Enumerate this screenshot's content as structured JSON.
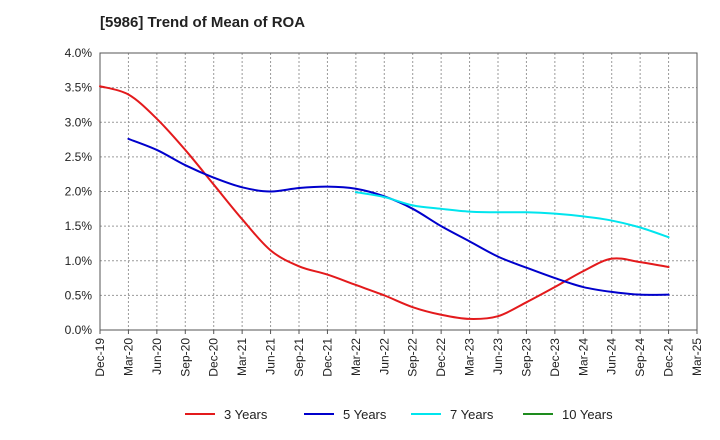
{
  "chart_data": {
    "type": "line",
    "title": "[5986]  Trend of Mean of ROA",
    "xlabel": "",
    "ylabel": "",
    "categories": [
      "Dec-19",
      "Mar-20",
      "Jun-20",
      "Sep-20",
      "Dec-20",
      "Mar-21",
      "Jun-21",
      "Sep-21",
      "Dec-21",
      "Mar-22",
      "Jun-22",
      "Sep-22",
      "Dec-22",
      "Mar-23",
      "Jun-23",
      "Sep-23",
      "Dec-23",
      "Mar-24",
      "Jun-24",
      "Sep-24",
      "Dec-24",
      "Mar-25"
    ],
    "y_ticks": [
      "0.0%",
      "0.5%",
      "1.0%",
      "1.5%",
      "2.0%",
      "2.5%",
      "3.0%",
      "3.5%",
      "4.0%"
    ],
    "ylim": [
      0,
      4.0
    ],
    "grid": true,
    "legend_position": "bottom",
    "series": [
      {
        "name": "3 Years",
        "color": "#e31a1c",
        "values": [
          3.52,
          3.4,
          3.05,
          2.6,
          2.1,
          1.6,
          1.15,
          0.92,
          0.8,
          0.65,
          0.5,
          0.33,
          0.22,
          0.16,
          0.2,
          0.4,
          0.62,
          0.85,
          1.03,
          0.98,
          0.91,
          null
        ]
      },
      {
        "name": "5 Years",
        "color": "#0000cc",
        "values": [
          null,
          2.76,
          2.6,
          2.38,
          2.2,
          2.06,
          2.0,
          2.05,
          2.07,
          2.04,
          1.93,
          1.75,
          1.5,
          1.28,
          1.06,
          0.9,
          0.75,
          0.62,
          0.55,
          0.51,
          0.51,
          null
        ]
      },
      {
        "name": "7 Years",
        "color": "#00e5ee",
        "values": [
          null,
          null,
          null,
          null,
          null,
          null,
          null,
          null,
          null,
          1.99,
          1.92,
          1.8,
          1.75,
          1.71,
          1.7,
          1.7,
          1.68,
          1.64,
          1.58,
          1.48,
          1.34,
          null
        ]
      },
      {
        "name": "10 Years",
        "color": "#1e8c1e",
        "values": [
          null,
          null,
          null,
          null,
          null,
          null,
          null,
          null,
          null,
          null,
          null,
          null,
          null,
          null,
          null,
          null,
          null,
          null,
          null,
          null,
          null,
          null
        ]
      }
    ]
  }
}
